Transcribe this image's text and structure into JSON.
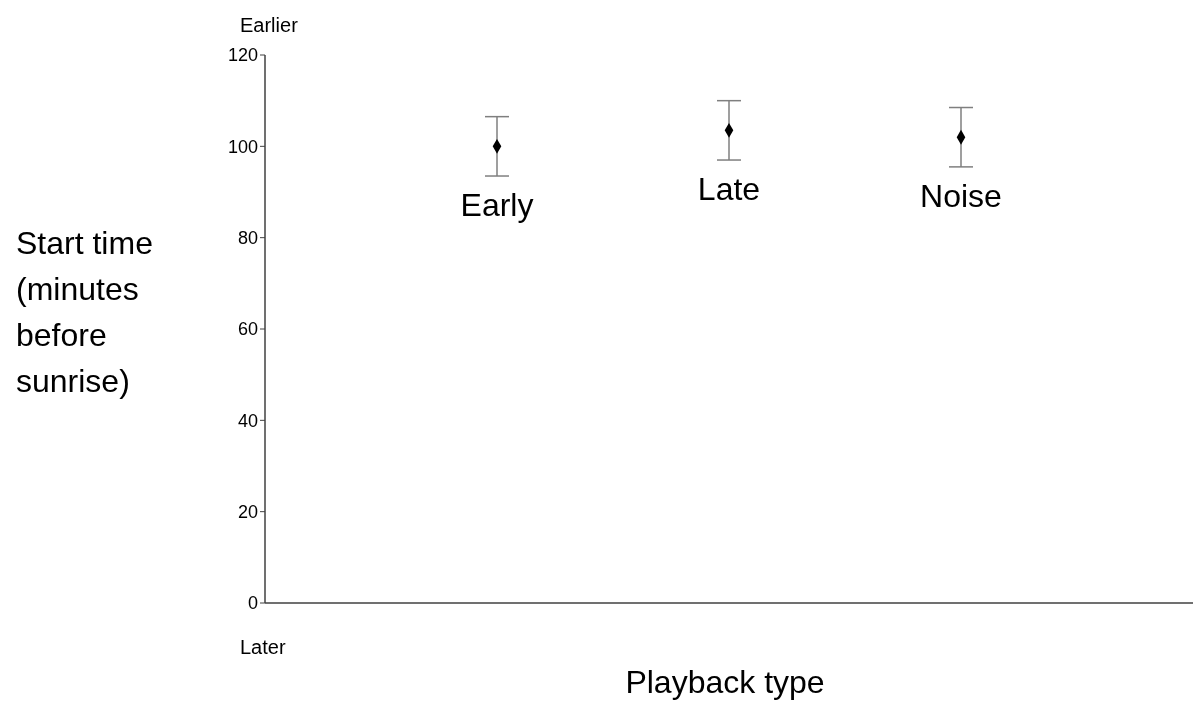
{
  "chart_data": {
    "type": "scatter",
    "categories": [
      "Early",
      "Late",
      "Noise"
    ],
    "series": [
      {
        "color": "#000000",
        "values": [
          100,
          103.5,
          102
        ],
        "errors": [
          6.5,
          6.5,
          6.5
        ]
      }
    ],
    "ylim": [
      0,
      120
    ],
    "yticks": [
      0,
      20,
      40,
      60,
      80,
      100,
      120
    ],
    "tick_labels": "y",
    "marker": "diamond",
    "grid": false,
    "legend": false,
    "xlabel": "Playback type",
    "ylabel": "Start time (minutes before sunrise)",
    "annotations": [
      "Earlier",
      "Later"
    ]
  }
}
